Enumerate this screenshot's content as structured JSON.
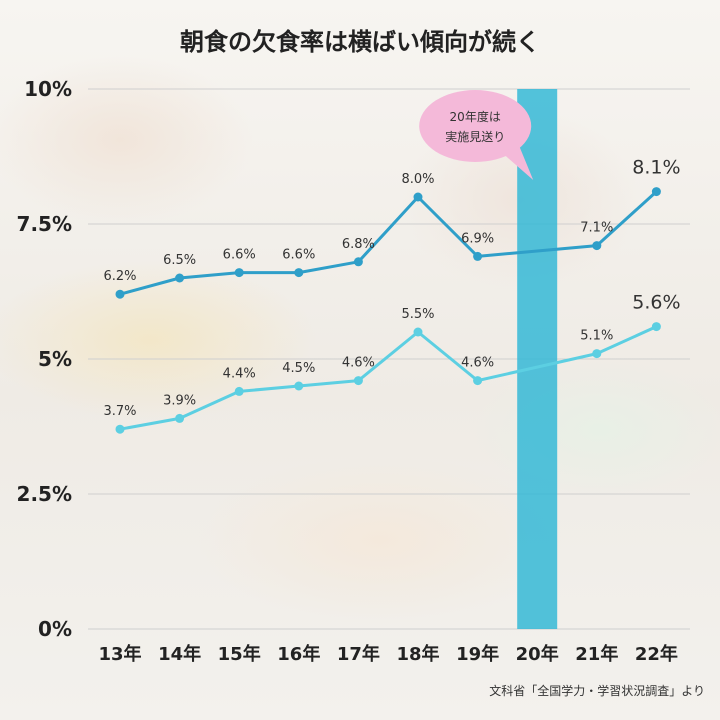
{
  "chart_data": {
    "type": "line",
    "title": "朝食の欠食率は横ばい傾向が続く",
    "categories": [
      "13年",
      "14年",
      "15年",
      "16年",
      "17年",
      "18年",
      "19年",
      "20年",
      "21年",
      "22年"
    ],
    "y_ticks": [
      "0%",
      "2.5%",
      "5%",
      "7.5%",
      "10%"
    ],
    "ylim": [
      0,
      10
    ],
    "grid": true,
    "series": [
      {
        "color": "#2f9fc9",
        "values": [
          6.2,
          6.5,
          6.6,
          6.6,
          6.8,
          8.0,
          6.9,
          null,
          7.1,
          8.1
        ],
        "labels": [
          "6.2%",
          "6.5%",
          "6.6%",
          "6.6%",
          "6.8%",
          "8.0%",
          "6.9%",
          "",
          "7.1%",
          "8.1%"
        ]
      },
      {
        "color": "#5ccfe2",
        "values": [
          3.7,
          3.9,
          4.4,
          4.5,
          4.6,
          5.5,
          4.6,
          null,
          5.1,
          5.6
        ],
        "labels": [
          "3.7%",
          "3.9%",
          "4.4%",
          "4.5%",
          "4.6%",
          "5.5%",
          "4.6%",
          "",
          "5.1%",
          "5.6%"
        ]
      }
    ],
    "annotation": {
      "category": "20年",
      "lines": [
        "20年度は",
        "実施見送り"
      ],
      "bubble_color": "#f4b9d9",
      "band_color": "#35b8d6"
    },
    "source": "文科省「全国学力・学習状況調査」より"
  }
}
